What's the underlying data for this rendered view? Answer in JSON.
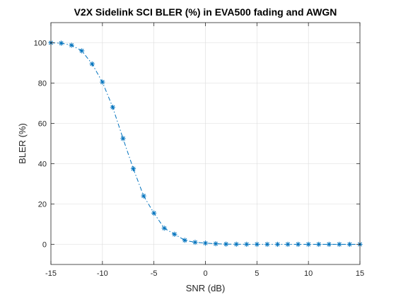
{
  "chart_data": {
    "type": "line",
    "title": "V2X Sidelink SCI BLER (%) in EVA500 fading and AWGN",
    "xlabel": "SNR (dB)",
    "ylabel": "BLER (%)",
    "xlim": [
      -15,
      15
    ],
    "ylim": [
      -10,
      110
    ],
    "xticks": [
      -15,
      -10,
      -5,
      0,
      5,
      10,
      15
    ],
    "yticks": [
      0,
      20,
      40,
      60,
      80,
      100
    ],
    "grid": true,
    "line_style": "dash-dot",
    "marker": "asterisk",
    "series": [
      {
        "color": "#0072BD",
        "x": [
          -15,
          -14,
          -13,
          -12,
          -11,
          -10,
          -9,
          -8,
          -7,
          -6,
          -5,
          -4,
          -3,
          -2,
          -1,
          0,
          1,
          2,
          3,
          4,
          5,
          6,
          7,
          8,
          9,
          10,
          11,
          12,
          13,
          14,
          15
        ],
        "y": [
          100,
          99.8,
          98.8,
          96,
          89.5,
          80.5,
          68,
          52.5,
          37.5,
          24,
          15.5,
          8,
          5,
          2,
          1,
          0.6,
          0.3,
          0.1,
          0.05,
          0.02,
          0,
          0,
          0,
          0,
          0,
          0,
          0,
          0,
          0,
          0,
          0
        ]
      }
    ]
  }
}
